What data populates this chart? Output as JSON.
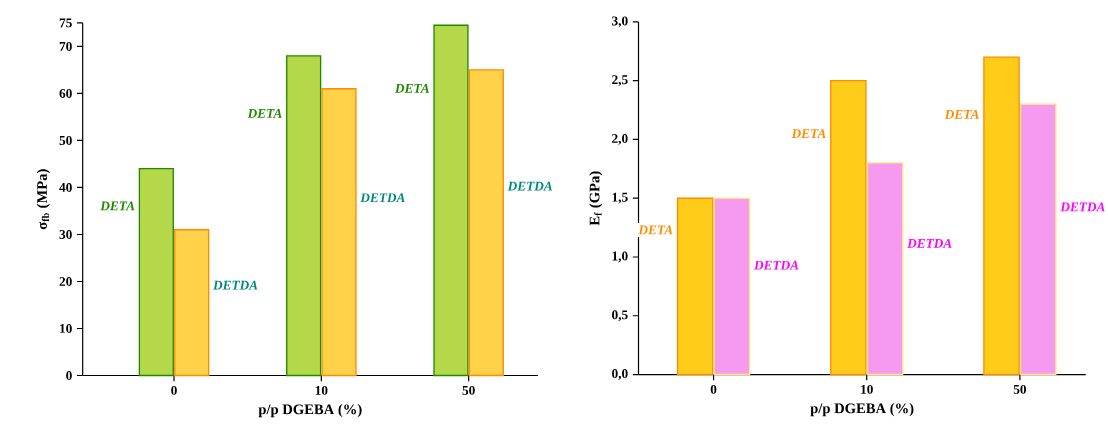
{
  "chart_data": [
    {
      "type": "bar",
      "xlabel": "p/p DGEBA (%)",
      "ylabel": "σ$_{fb}$ (MPa)",
      "categories": [
        "0",
        "10",
        "50"
      ],
      "series": [
        {
          "name": "DETA",
          "color": "#b5d84a",
          "values": [
            44,
            68,
            74.5
          ]
        },
        {
          "name": "DETDA",
          "color": "#ffd24a",
          "values": [
            31,
            61,
            65
          ]
        }
      ],
      "ylim": [
        0,
        75
      ],
      "yticks": [
        0,
        10,
        20,
        30,
        40,
        50,
        60,
        70,
        75
      ]
    },
    {
      "type": "bar",
      "xlabel": "p/p DGEBA (%)",
      "ylabel": "E$_{f}$ (GPa)",
      "categories": [
        "0",
        "10",
        "50"
      ],
      "series": [
        {
          "name": "DETA",
          "color": "#ffcc1a",
          "values": [
            1.5,
            2.5,
            2.7
          ]
        },
        {
          "name": "DETDA",
          "color": "#f59af0",
          "values": [
            1.5,
            1.8,
            2.3
          ]
        }
      ],
      "ylim": [
        0,
        3.0
      ],
      "yticks": [
        {
          "value": 0,
          "label": "0,0"
        },
        {
          "value": 0.5,
          "label": "0,5"
        },
        {
          "value": 1.0,
          "label": "1,0"
        },
        {
          "value": 1.5,
          "label": "1,5"
        },
        {
          "value": 2.0,
          "label": "2,0"
        },
        {
          "value": 2.5,
          "label": "2,5"
        },
        {
          "value": 3.0,
          "label": "3,0"
        }
      ]
    }
  ]
}
